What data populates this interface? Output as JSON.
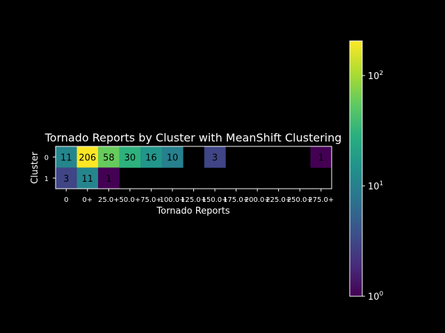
{
  "chart_data": {
    "type": "heatmap",
    "title": "Tornado Reports by Cluster with MeanShift Clustering",
    "xlabel": "Tornado Reports",
    "ylabel": "Cluster",
    "x_categories": [
      "0",
      "0+",
      "25.0+",
      "50.0+",
      "75.0+",
      "100.0+",
      "125.0+",
      "150.0+",
      "175.0+",
      "200.0+",
      "225.0+",
      "250.0+",
      "275.0+"
    ],
    "y_categories": [
      "0",
      "1"
    ],
    "values": [
      [
        11,
        206,
        58,
        30,
        16,
        10,
        null,
        3,
        null,
        null,
        null,
        null,
        1
      ],
      [
        3,
        11,
        1,
        null,
        null,
        null,
        null,
        null,
        null,
        null,
        null,
        null,
        null
      ]
    ],
    "colormap": "viridis",
    "color_scale": "log",
    "colorbar": {
      "range": [
        1,
        206
      ],
      "ticks": [
        {
          "value": 1,
          "base": "10",
          "exp": "0"
        },
        {
          "value": 10,
          "base": "10",
          "exp": "1"
        },
        {
          "value": 100,
          "base": "10",
          "exp": "2"
        }
      ]
    },
    "background": "#000000",
    "text_color": "#ffffff"
  }
}
